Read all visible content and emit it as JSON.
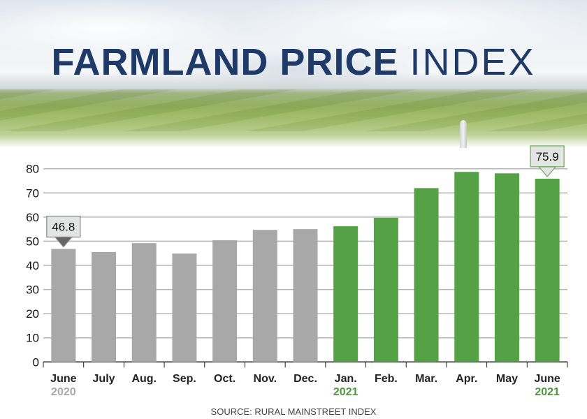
{
  "title": {
    "bold": "FARMLAND PRICE",
    "light": "INDEX"
  },
  "source": "SOURCE: RURAL MAINSTREET INDEX",
  "colors": {
    "gray_bar": "#a7a8a7",
    "green_bar": "#55a146",
    "title": "#1f3a68",
    "year_2020": "#a7a8a7",
    "year_2021": "#4a9a3a"
  },
  "chart_data": {
    "type": "bar",
    "categories": [
      "June",
      "July",
      "Aug.",
      "Sep.",
      "Oct.",
      "Nov.",
      "Dec.",
      "Jan.",
      "Feb.",
      "Mar.",
      "Apr.",
      "May",
      "June"
    ],
    "year_labels": [
      "2020",
      "",
      "",
      "",
      "",
      "",
      "",
      "2021",
      "",
      "",
      "",
      "",
      "2021"
    ],
    "values": [
      46.8,
      45.5,
      49.2,
      44.9,
      50.4,
      54.7,
      55.0,
      56.2,
      59.7,
      72.0,
      78.7,
      78.1,
      75.9
    ],
    "year_of_bar": [
      "2020",
      "2020",
      "2020",
      "2020",
      "2020",
      "2020",
      "2020",
      "2021",
      "2021",
      "2021",
      "2021",
      "2021",
      "2021"
    ],
    "callouts": [
      {
        "index": 0,
        "label": "46.8"
      },
      {
        "index": 12,
        "label": "75.9"
      }
    ],
    "ylim": [
      0,
      80
    ],
    "yticks": [
      "0",
      "10",
      "20",
      "30",
      "40",
      "50",
      "60",
      "70",
      "80"
    ],
    "grid": true,
    "xlabel": "",
    "ylabel": ""
  }
}
